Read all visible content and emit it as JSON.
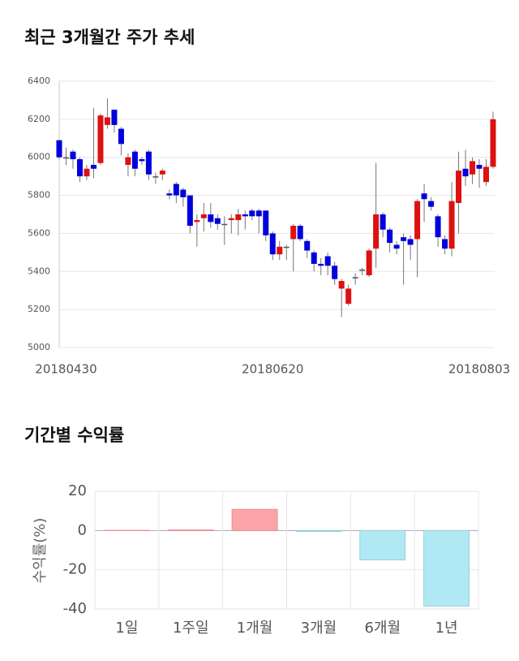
{
  "chart_data": [
    {
      "type": "candlestick",
      "title": "최근 3개월간 주가 추세",
      "categories": [
        null,
        "20180430",
        null,
        null,
        null,
        null,
        null,
        null,
        null,
        null,
        null,
        null,
        null,
        null,
        null,
        null,
        null,
        null,
        null,
        null,
        null,
        null,
        null,
        null,
        null,
        null,
        null,
        null,
        null,
        null,
        null,
        "20180620",
        null,
        null,
        null,
        null,
        null,
        null,
        null,
        null,
        null,
        null,
        null,
        null,
        null,
        null,
        null,
        null,
        null,
        null,
        null,
        null,
        null,
        null,
        null,
        null,
        null,
        null,
        null,
        null,
        null,
        "20180803",
        null,
        null
      ],
      "open": [
        6090,
        6000,
        6030,
        5990,
        5900,
        5960,
        5970,
        6170,
        6250,
        6150,
        5960,
        6030,
        5990,
        6030,
        5900,
        5910,
        5810,
        5860,
        5830,
        5800,
        5660,
        5680,
        5700,
        5680,
        5650,
        5670,
        5670,
        5700,
        5720,
        5720,
        5720,
        5600,
        5490,
        5530,
        5570,
        5640,
        5560,
        5500,
        5440,
        5480,
        5430,
        5310,
        5230,
        5370,
        5410,
        5380,
        5520,
        5700,
        5620,
        5540,
        5580,
        5570,
        5570,
        5810,
        5770,
        5690,
        5570,
        5520,
        5760,
        5940,
        5910,
        5960,
        5870,
        5950
      ],
      "high": [
        6090,
        6050,
        6040,
        6000,
        5960,
        6260,
        6230,
        6310,
        6250,
        6160,
        6020,
        6040,
        6000,
        6040,
        5920,
        5940,
        5830,
        5870,
        5840,
        5800,
        5700,
        5760,
        5760,
        5700,
        5690,
        5700,
        5730,
        5720,
        5730,
        5730,
        5720,
        5610,
        5560,
        5540,
        5650,
        5650,
        5570,
        5510,
        5470,
        5500,
        5450,
        5360,
        5330,
        5390,
        5420,
        5520,
        5970,
        5710,
        5630,
        5560,
        5600,
        5590,
        5780,
        5860,
        5790,
        5700,
        5590,
        5870,
        6030,
        6040,
        6000,
        5990,
        5990,
        6240
      ],
      "low": [
        5990,
        5960,
        5940,
        5870,
        5880,
        5890,
        5960,
        6150,
        6130,
        6010,
        5900,
        5900,
        5960,
        5880,
        5860,
        5880,
        5780,
        5760,
        5740,
        5600,
        5530,
        5610,
        5630,
        5620,
        5540,
        5600,
        5590,
        5620,
        5670,
        5600,
        5560,
        5460,
        5460,
        5460,
        5400,
        5560,
        5470,
        5400,
        5380,
        5380,
        5330,
        5160,
        5220,
        5330,
        5380,
        5370,
        5420,
        5580,
        5500,
        5490,
        5330,
        5460,
        5370,
        5660,
        5720,
        5530,
        5490,
        5480,
        5600,
        5850,
        5860,
        5840,
        5850,
        5940
      ],
      "close": [
        6000,
        6000,
        5990,
        5900,
        5940,
        5940,
        6220,
        6210,
        6170,
        6070,
        6000,
        5940,
        5980,
        5910,
        5900,
        5930,
        5800,
        5800,
        5790,
        5640,
        5670,
        5700,
        5660,
        5650,
        5650,
        5680,
        5700,
        5690,
        5690,
        5690,
        5590,
        5490,
        5530,
        5530,
        5640,
        5570,
        5510,
        5440,
        5430,
        5430,
        5360,
        5350,
        5310,
        5370,
        5410,
        5510,
        5700,
        5620,
        5550,
        5520,
        5560,
        5540,
        5770,
        5780,
        5740,
        5580,
        5520,
        5770,
        5930,
        5900,
        5980,
        5940,
        5950,
        6200
      ],
      "up_color": "#dd1111",
      "down_color": "#0000dd",
      "ylim": [
        5000,
        6400
      ],
      "yticks": [
        5000,
        5200,
        5400,
        5600,
        5800,
        6000,
        6200,
        6400
      ],
      "grid": true
    },
    {
      "type": "bar",
      "title": "기간별 수익률",
      "y_label": "수익률(%)",
      "categories": [
        "1일",
        "1주일",
        "1개월",
        "3개월",
        "6개월",
        "1년"
      ],
      "values": [
        0.1,
        0.3,
        10.8,
        -0.5,
        -15,
        -38.5
      ],
      "positive_color": "#fba5aa",
      "negative_color": "#b0e9f3",
      "ylim": [
        -40,
        20
      ],
      "yticks": [
        -40,
        -20,
        0,
        20
      ],
      "grid": true
    }
  ]
}
